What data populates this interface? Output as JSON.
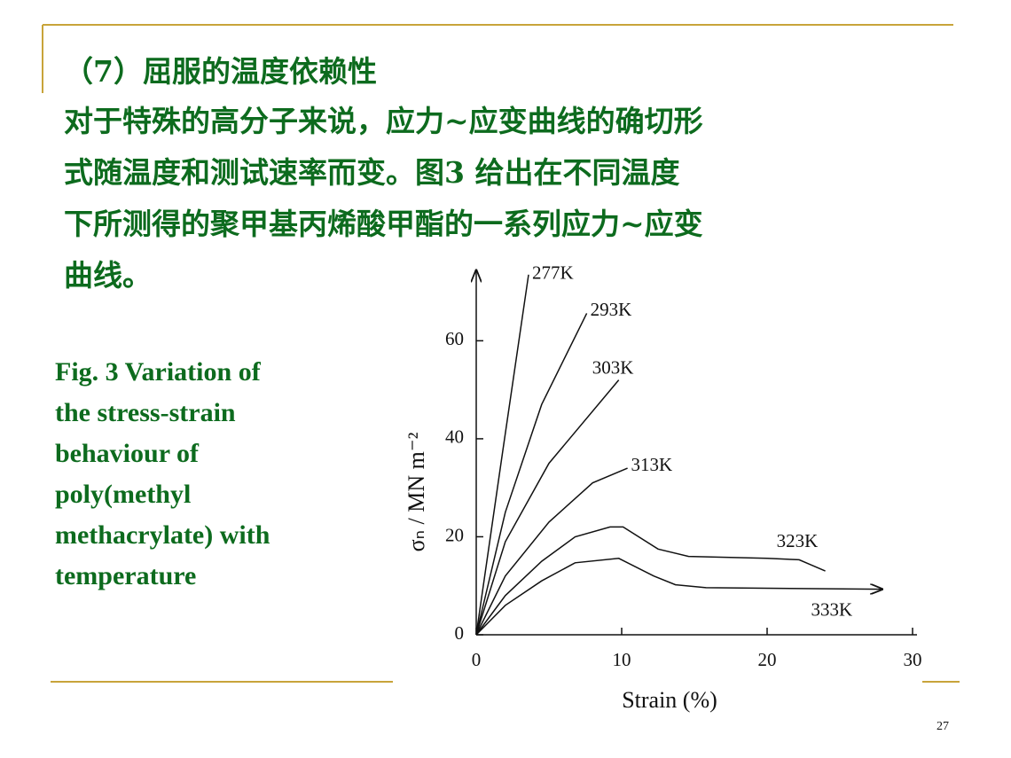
{
  "title": "（7）屈服的温度依赖性",
  "paragraph": [
    "对于特殊的高分子来说，应力~应变曲线的确切形",
    "式随温度和测试速率而变。图3 给出在不同温度",
    "下所测得的聚甲基丙烯酸甲酯的一系列应力~应变",
    "曲线。"
  ],
  "caption": [
    "Fig. 3 Variation of",
    "the stress-strain",
    "behaviour of",
    "poly(methyl",
    "methacrylate) with",
    "temperature"
  ],
  "page_number": "27",
  "chart_data": {
    "type": "line",
    "x_label": "Strain (%)",
    "y_label": "σₙ / MN m⁻²",
    "xlim": [
      0,
      30
    ],
    "xticks": [
      0,
      10,
      20,
      30
    ],
    "ylim": [
      0,
      74
    ],
    "yticks": [
      0,
      20,
      40,
      60
    ],
    "series": [
      {
        "name": "277K",
        "color": "#111111",
        "x": [
          0,
          1.8,
          3.6
        ],
        "values": [
          0,
          37,
          73.5
        ]
      },
      {
        "name": "293K",
        "color": "#111111",
        "x": [
          0,
          2,
          4.5,
          7.6
        ],
        "values": [
          0,
          25,
          47,
          65.6
        ]
      },
      {
        "name": "303K",
        "color": "#111111",
        "x": [
          0,
          2,
          5,
          9.8
        ],
        "values": [
          0,
          19,
          35,
          52
        ]
      },
      {
        "name": "313K",
        "color": "#111111",
        "x": [
          0,
          2,
          5,
          8,
          10.4
        ],
        "values": [
          0,
          12,
          23,
          31,
          34
        ]
      },
      {
        "name": "323K",
        "color": "#111111",
        "x": [
          0,
          2,
          4.5,
          6.8,
          9.2,
          10.1,
          12.5,
          14.6,
          20,
          22.2,
          24
        ],
        "values": [
          0,
          8,
          15,
          20,
          22,
          22,
          17.5,
          16,
          15.6,
          15.3,
          13
        ]
      },
      {
        "name": "333K",
        "color": "#111111",
        "x": [
          0,
          2,
          4.5,
          6.8,
          9.8,
          12.2,
          13.7,
          15.8,
          27.9
        ],
        "values": [
          0,
          6,
          11,
          14.7,
          15.6,
          12,
          10.2,
          9.6,
          9.3
        ]
      }
    ]
  }
}
